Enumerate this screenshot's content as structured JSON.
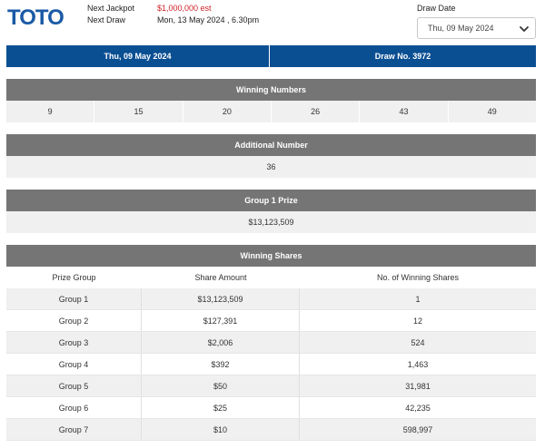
{
  "brand": {
    "logo_text": "TOTO",
    "logo_color": "#1a5aa6"
  },
  "jackpot": {
    "next_jackpot_label": "Next Jackpot",
    "next_jackpot_value": "$1,000,000 est",
    "next_draw_label": "Next Draw",
    "next_draw_value": "Mon, 13 May 2024 , 6.30pm"
  },
  "draw_date": {
    "label": "Draw Date",
    "selected": "Thu, 09 May 2024",
    "icon": "chevron-down-icon"
  },
  "draw_bar": {
    "date": "Thu, 09 May 2024",
    "draw_no": "Draw No. 3972"
  },
  "winning_numbers": {
    "title": "Winning Numbers",
    "numbers": [
      "9",
      "15",
      "20",
      "26",
      "43",
      "49"
    ]
  },
  "additional_number": {
    "title": "Additional Number",
    "value": "36"
  },
  "group1_prize": {
    "title": "Group 1 Prize",
    "value": "$13,123,509"
  },
  "winning_shares": {
    "title": "Winning Shares",
    "columns": [
      "Prize Group",
      "Share Amount",
      "No. of Winning Shares"
    ],
    "rows": [
      [
        "Group 1",
        "$13,123,509",
        "1"
      ],
      [
        "Group 2",
        "$127,391",
        "12"
      ],
      [
        "Group 3",
        "$2,006",
        "524"
      ],
      [
        "Group 4",
        "$392",
        "1,463"
      ],
      [
        "Group 5",
        "$50",
        "31,981"
      ],
      [
        "Group 6",
        "$25",
        "42,235"
      ],
      [
        "Group 7",
        "$10",
        "598,997"
      ]
    ]
  },
  "colors": {
    "header_blue": "#0b4f93",
    "section_grey": "#757575",
    "jackpot_red": "#d2232a"
  }
}
